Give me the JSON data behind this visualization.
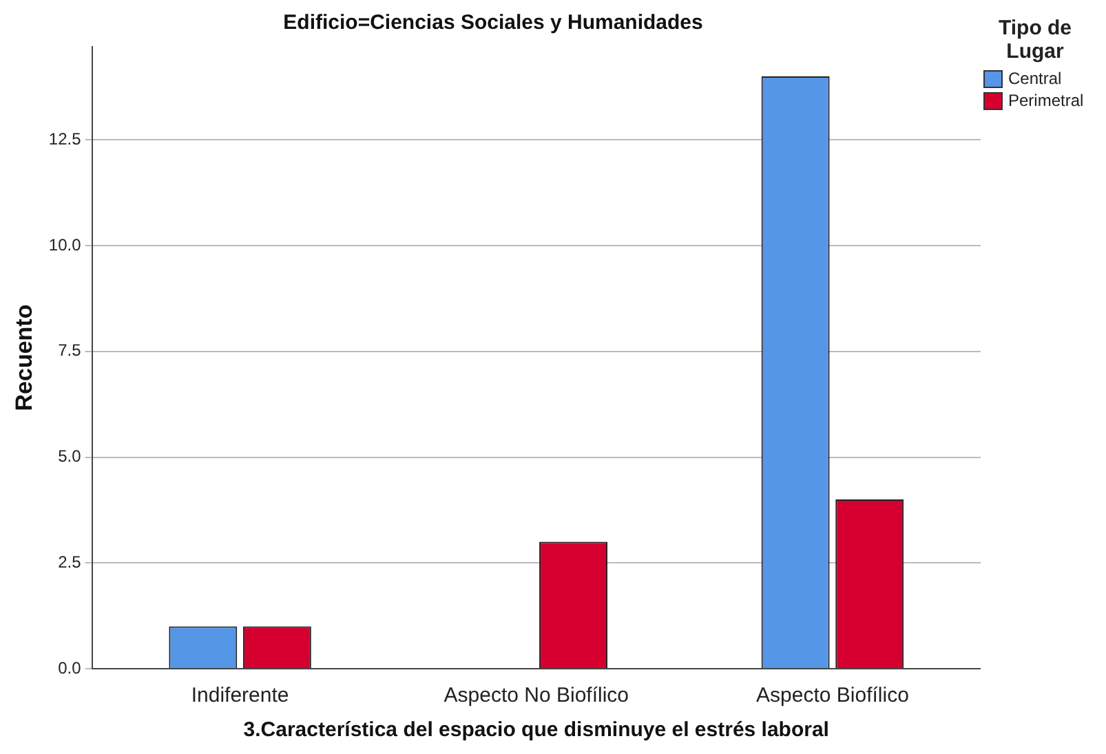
{
  "chart_data": {
    "type": "bar",
    "title": "Edificio=Ciencias Sociales y Humanidades",
    "xlabel": "3.Característica del espacio que disminuye el estrés laboral",
    "ylabel": "Recuento",
    "legend_title": "Tipo de Lugar",
    "categories": [
      "Indiferente",
      "Aspecto No Biofílico",
      "Aspecto Biofílico"
    ],
    "series": [
      {
        "name": "Central",
        "color": "#5596e6",
        "values": [
          1,
          null,
          14
        ]
      },
      {
        "name": "Perimetral",
        "color": "#d5002f",
        "values": [
          1,
          3,
          4
        ]
      }
    ],
    "ylim": [
      0,
      14.7
    ],
    "yticks": [
      {
        "value": 0,
        "label": "0.0"
      },
      {
        "value": 2.5,
        "label": "2.5"
      },
      {
        "value": 5,
        "label": "5.0"
      },
      {
        "value": 7.5,
        "label": "7.5"
      },
      {
        "value": 10,
        "label": "10.0"
      },
      {
        "value": 12.5,
        "label": "12.5"
      }
    ],
    "grid": "y",
    "legend": "top right"
  }
}
